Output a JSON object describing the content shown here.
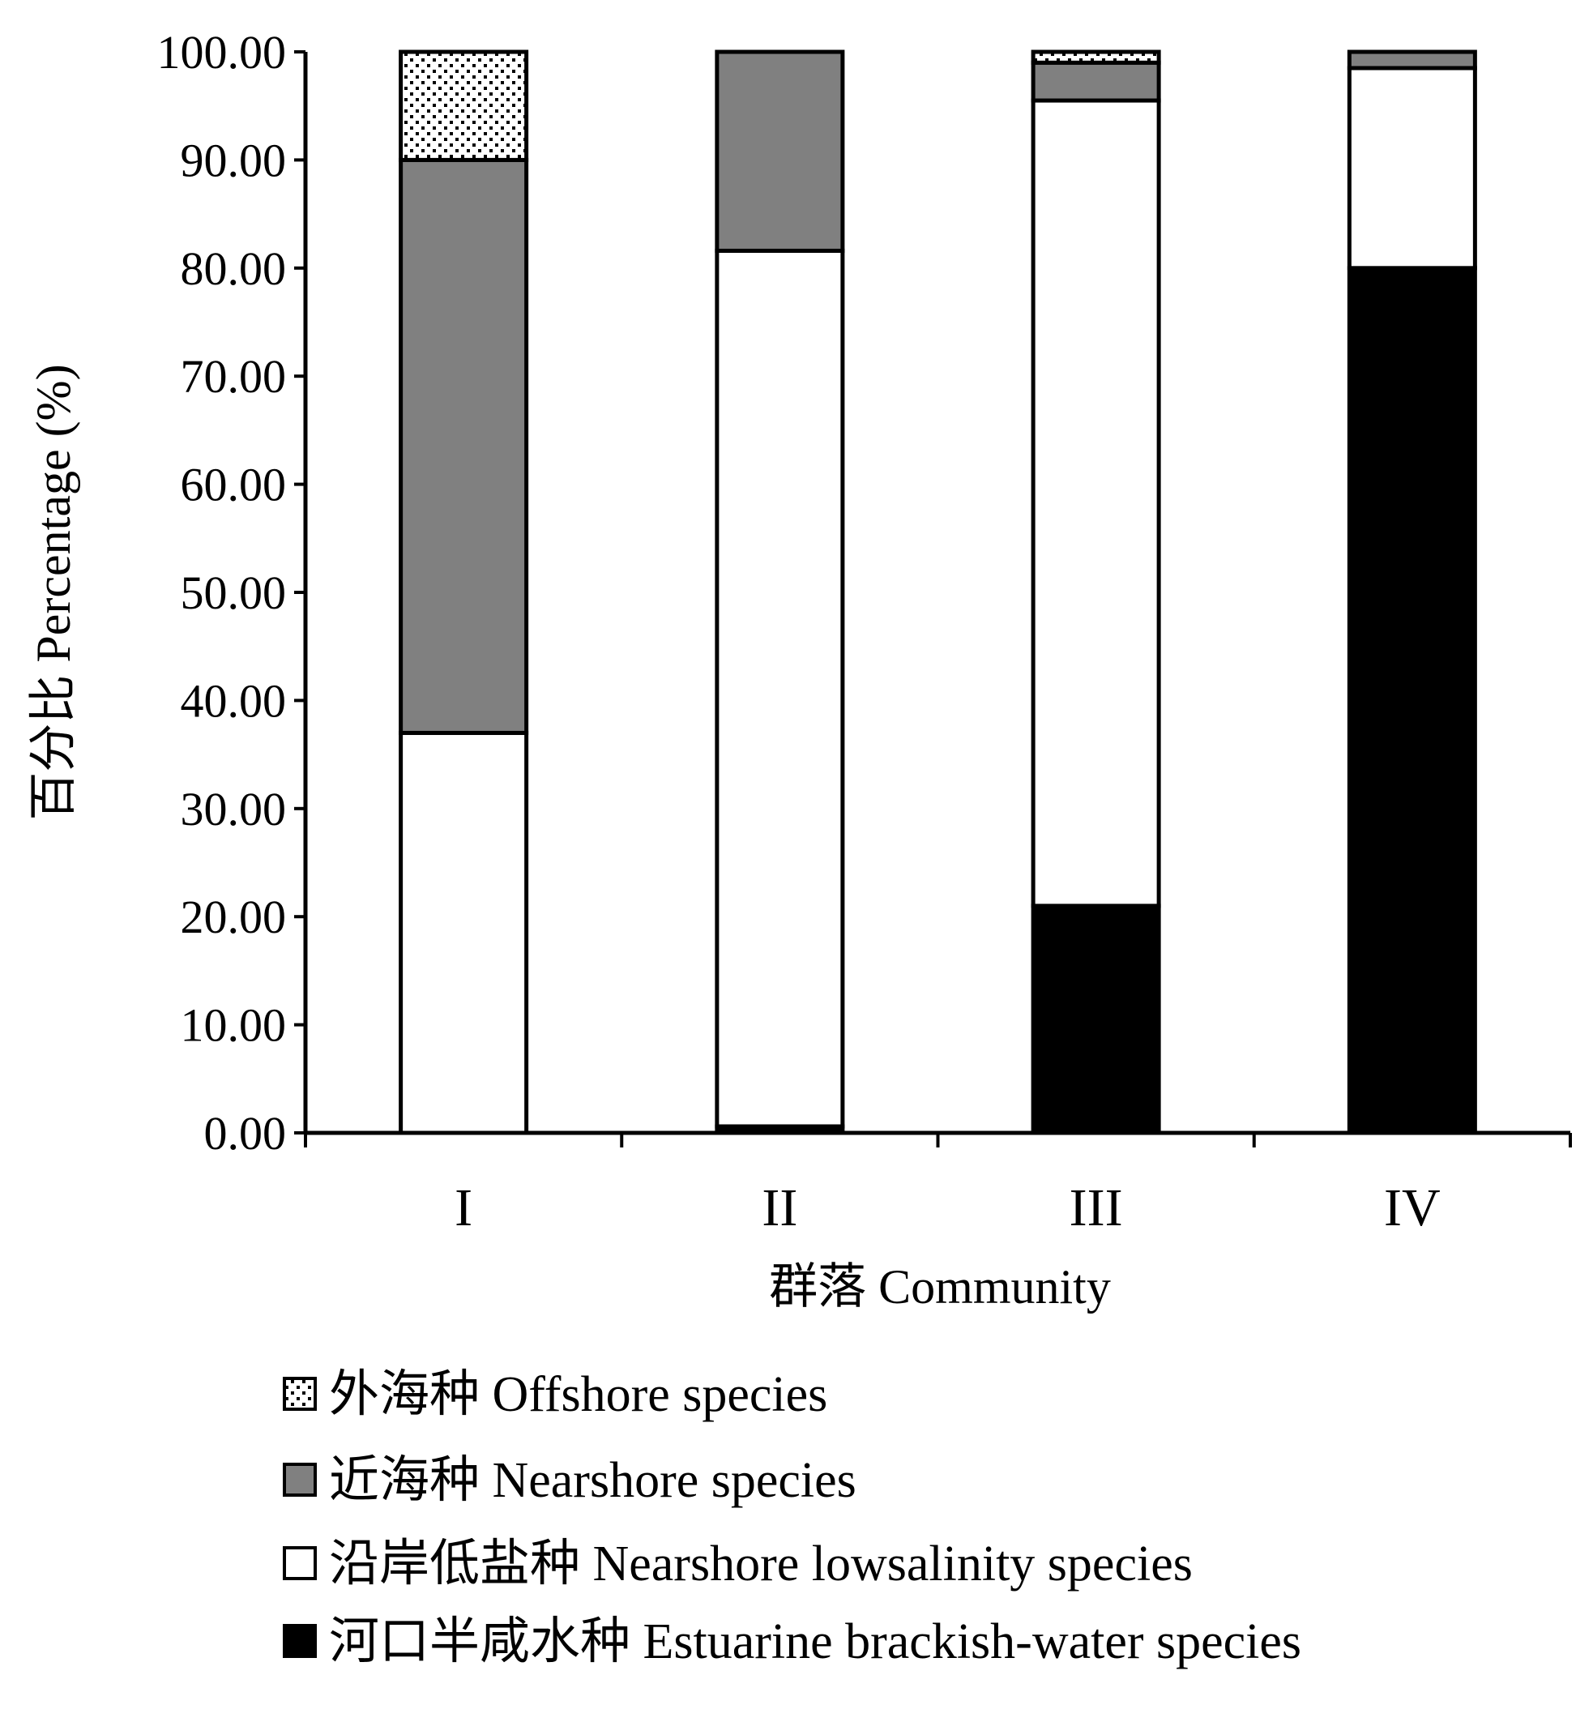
{
  "chart_data": {
    "type": "bar",
    "stacked": true,
    "categories": [
      "I",
      "II",
      "III",
      "IV"
    ],
    "xlabel": "群落 Community",
    "ylabel": "百分比 Percentage (%)",
    "ylim": [
      0,
      100
    ],
    "yticks": [
      "0.00",
      "10.00",
      "20.00",
      "30.00",
      "40.00",
      "50.00",
      "60.00",
      "70.00",
      "80.00",
      "90.00",
      "100.00"
    ],
    "grid": false,
    "legend_position": "bottom",
    "series": [
      {
        "name": "河口半咸水种 Estuarine brackish-water species",
        "key": "estuarine",
        "fill": "#000000",
        "values": [
          0.0,
          0.6,
          21.0,
          80.0
        ]
      },
      {
        "name": "沿岸低盐种 Nearshore lowsalinity species",
        "key": "lowsalinity",
        "fill": "#ffffff",
        "values": [
          37.0,
          81.0,
          74.5,
          18.5
        ]
      },
      {
        "name": "近海种 Nearshore species",
        "key": "nearshore",
        "fill": "#808080",
        "values": [
          53.0,
          18.4,
          3.5,
          1.5
        ]
      },
      {
        "name": "外海种 Offshore species",
        "key": "offshore",
        "fill": "dots",
        "values": [
          10.0,
          0.0,
          1.0,
          0.0
        ]
      }
    ],
    "legend_order": [
      "offshore",
      "nearshore",
      "lowsalinity",
      "estuarine"
    ]
  }
}
